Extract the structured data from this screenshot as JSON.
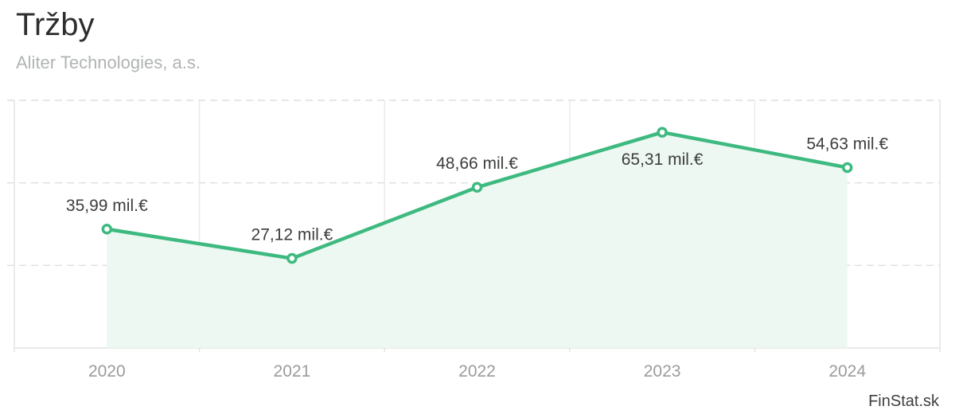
{
  "header": {
    "title": "Tržby",
    "subtitle": "Aliter Technologies, a.s."
  },
  "footer": {
    "brand": "FinStat.sk"
  },
  "chart_data": {
    "type": "area",
    "title": "Tržby",
    "subtitle": "Aliter Technologies, a.s.",
    "categories": [
      "2020",
      "2021",
      "2022",
      "2023",
      "2024"
    ],
    "series": [
      {
        "name": "Tržby",
        "values": [
          35.99,
          27.12,
          48.66,
          65.31,
          54.63
        ],
        "labels": [
          "35,99 mil.€",
          "27,12 mil.€",
          "48,66 mil.€",
          "65,31 mil.€",
          "54,63 mil.€"
        ]
      }
    ],
    "unit": "mil.€",
    "ylim": [
      0,
      75
    ],
    "y_gridlines": [
      25,
      50,
      75
    ],
    "grid": "horizontal-dashed, vertical-solid-column-boundaries",
    "legend": "none",
    "yaxis_tick_labels": "none",
    "colors": {
      "line": "#3eba81",
      "marker_fill": "#ffffff",
      "area_fill": "#edf8f2",
      "grid_dashed": "#dedede",
      "grid_solid": "#e9e9e9",
      "border": "#e2e2e2",
      "data_label": "#3d3d3d",
      "axis_label": "#9b9b9b",
      "title": "#2e2e2e",
      "subtitle": "#b1b4b4",
      "brand": "#3e3e3e"
    }
  }
}
